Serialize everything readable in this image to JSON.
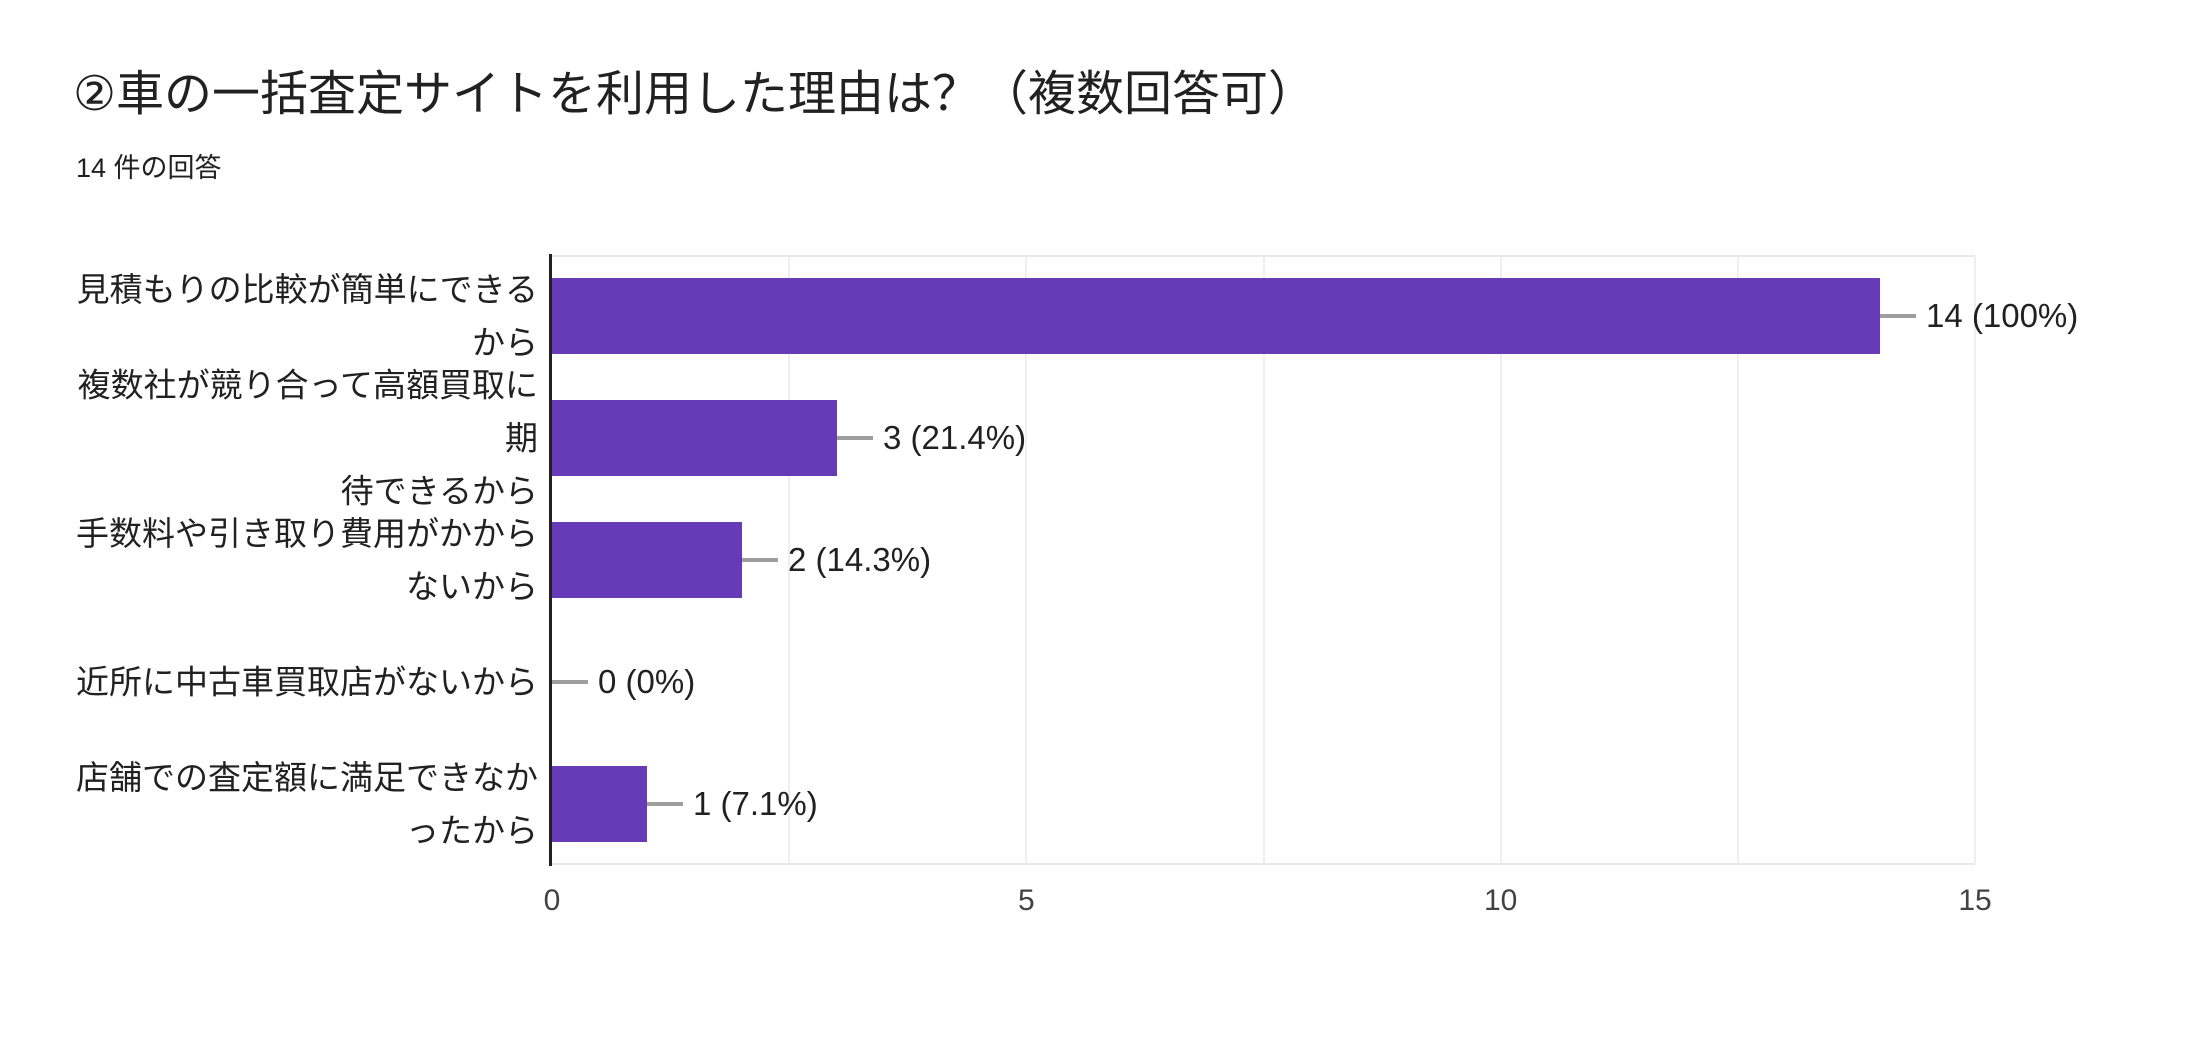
{
  "header": {
    "title": "②車の一括査定サイトを利用した理由は？（複数回答可）",
    "response_count": "14 件の回答"
  },
  "chart_data": {
    "type": "bar",
    "orientation": "horizontal",
    "title": "②車の一括査定サイトを利用した理由は？（複数回答可）",
    "subtitle": "14 件の回答",
    "categories": [
      "見積もりの比較が簡単にできる\nから",
      "複数社が競り合って高額買取に期\n待できるから",
      "手数料や引き取り費用がかから\nないから",
      "近所に中古車買取店がないから",
      "店舗での査定額に満足できなか\nったから"
    ],
    "values": [
      14,
      3,
      2,
      0,
      1
    ],
    "value_labels": [
      "14 (100%)",
      "3 (21.4%)",
      "2 (14.3%)",
      "0 (0%)",
      "1 (7.1%)"
    ],
    "total_responses": 14,
    "xlabel": "",
    "ylabel": "",
    "xlim": [
      0,
      15
    ],
    "x_ticks": [
      "0",
      "5",
      "10",
      "15"
    ],
    "gridline_step": 2.5,
    "grid": true,
    "legend_position": "none",
    "colors": {
      "bar": "#673ab7",
      "axis": "#212121",
      "gridline": "#efefef",
      "connector": "#9e9e9e",
      "text": "#212121",
      "tick_text": "#424242",
      "background": "#ffffff"
    }
  }
}
